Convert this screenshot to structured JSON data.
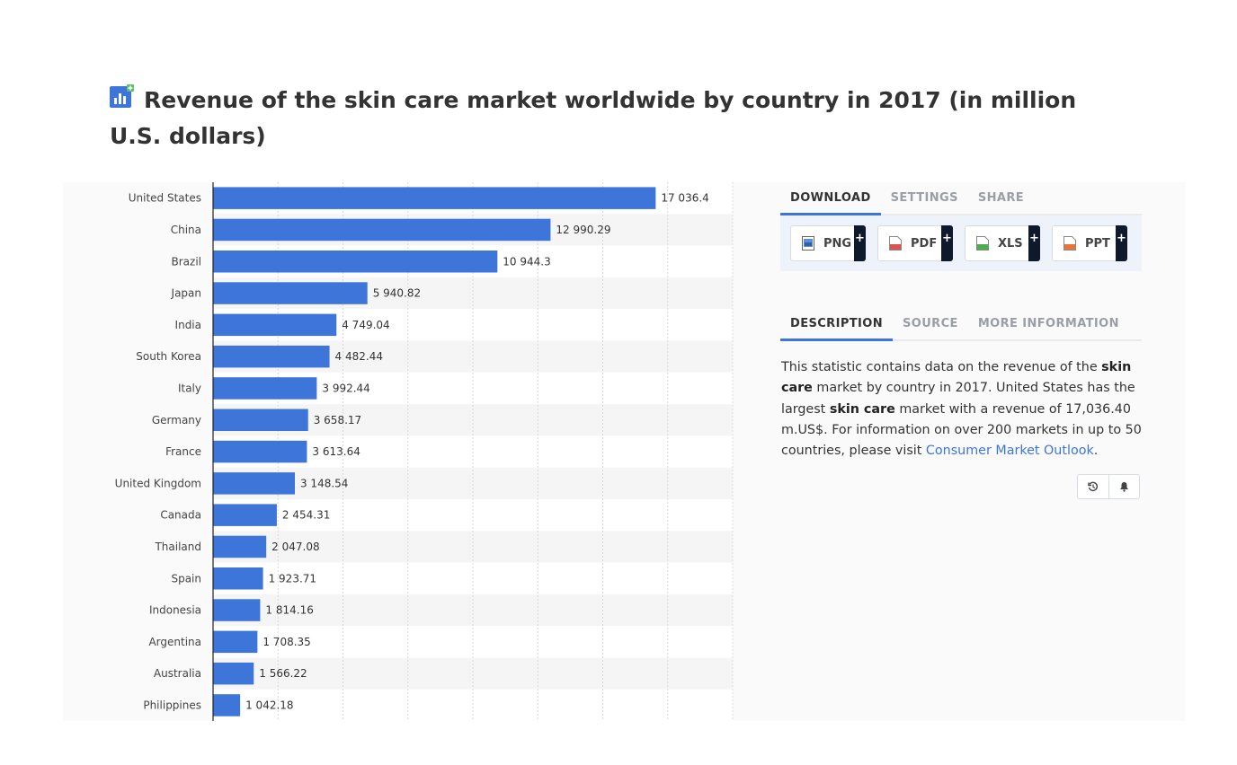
{
  "page": {
    "title": "Revenue of the skin care market worldwide by country in 2017 (in million U.S. dollars)"
  },
  "chart_data": {
    "type": "bar",
    "orientation": "horizontal",
    "title": "Revenue of the skin care market worldwide by country in 2017 (in million U.S. dollars)",
    "categories": [
      "United States",
      "China",
      "Brazil",
      "Japan",
      "India",
      "South Korea",
      "Italy",
      "Germany",
      "France",
      "United Kingdom",
      "Canada",
      "Thailand",
      "Spain",
      "Indonesia",
      "Argentina",
      "Australia",
      "Philippines"
    ],
    "values": [
      17036.4,
      12990.29,
      10944.3,
      5940.82,
      4749.04,
      4482.44,
      3992.44,
      3658.17,
      3613.64,
      3148.54,
      2454.31,
      2047.08,
      1923.71,
      1814.16,
      1708.35,
      1566.22,
      1042.18
    ],
    "value_labels": [
      "17 036.4",
      "12 990.29",
      "10 944.3",
      "5 940.82",
      "4 749.04",
      "4 482.44",
      "3 992.44",
      "3 658.17",
      "3 613.64",
      "3 148.54",
      "2 454.31",
      "2 047.08",
      "1 923.71",
      "1 814.16",
      "1 708.35",
      "1 566.22",
      "1 042.18"
    ],
    "xlim": [
      0,
      20000
    ],
    "grid": true,
    "bar_color": "#3d75d9",
    "legend": "none"
  },
  "panel": {
    "top_tabs": [
      "DOWNLOAD",
      "SETTINGS",
      "SHARE"
    ],
    "downloads": [
      {
        "label": "PNG",
        "icon": "png-file-icon",
        "plus": "+"
      },
      {
        "label": "PDF",
        "icon": "pdf-file-icon",
        "plus": "+"
      },
      {
        "label": "XLS",
        "icon": "xls-file-icon",
        "plus": "+"
      },
      {
        "label": "PPT",
        "icon": "ppt-file-icon",
        "plus": "+"
      }
    ],
    "info_tabs": [
      "DESCRIPTION",
      "SOURCE",
      "MORE INFORMATION"
    ],
    "description": {
      "p1": "This statistic contains data on the revenue of the ",
      "b1": "skin care",
      "p2": " market by country in 2017. United States has the largest ",
      "b2": "skin care",
      "p3": " market with a revenue of 17,036.40 m.US$. For information on over 200 markets in up to 50 countries, please visit ",
      "link": "Consumer Market Outlook",
      "p4": "."
    },
    "action_icons": [
      "history-icon",
      "bell-icon"
    ]
  },
  "colors": {
    "accent": "#3d75d9",
    "title_icon": "#3d75d9",
    "title_icon_badge": "#5cc26a"
  }
}
